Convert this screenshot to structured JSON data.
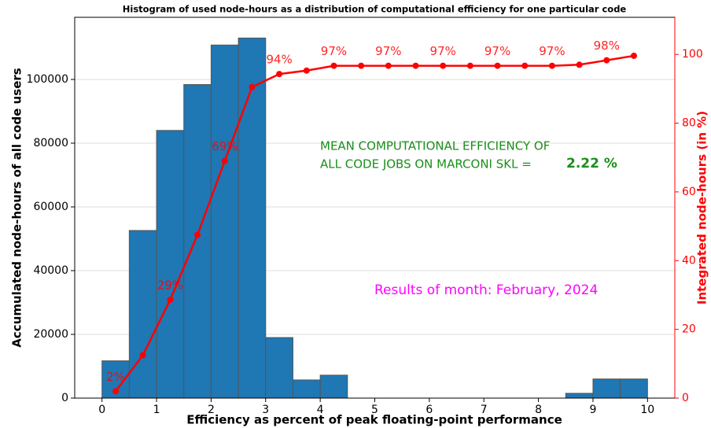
{
  "chart_data": {
    "type": "histogram",
    "title": "Histogram of used node-hours as a distribution of computational efficiency for one particular code",
    "xlabel": "Efficiency as percent of peak floating-point performance",
    "ylabel": "Accumulated node-hours of all code users",
    "y2label": "Integrated node-hours (in %)",
    "bins": [
      0,
      0.5,
      1,
      1.5,
      2,
      2.5,
      3,
      3.5,
      4,
      4.5,
      5,
      5.5,
      6,
      6.5,
      7,
      7.5,
      8,
      8.5,
      9,
      9.5,
      10
    ],
    "values": [
      11700,
      52600,
      84000,
      98400,
      110800,
      113000,
      19000,
      5700,
      7200,
      0,
      0,
      0,
      0,
      0,
      0,
      0,
      0,
      1500,
      6000,
      6000
    ],
    "color": "#1f77b4",
    "xlim": [
      -0.5,
      10.5
    ],
    "xticks": [
      0,
      1,
      2,
      3,
      4,
      5,
      6,
      7,
      8,
      9,
      10
    ],
    "ylim": [
      0,
      119500
    ],
    "yticks": [
      0,
      20000,
      40000,
      60000,
      80000,
      100000
    ],
    "y2lim": [
      0,
      110.8
    ],
    "y2ticks": [
      0,
      20,
      40,
      60,
      80,
      100
    ],
    "grid": true,
    "line": {
      "axis": "y2",
      "color": "#ff0000",
      "x": [
        0.25,
        0.75,
        1.25,
        1.75,
        2.25,
        2.75,
        3.25,
        3.75,
        4.25,
        4.75,
        5.25,
        5.75,
        6.25,
        6.75,
        7.25,
        7.75,
        8.25,
        8.75,
        9.25,
        9.75
      ],
      "values": [
        2,
        12.5,
        28.6,
        47.5,
        69,
        90.5,
        94.3,
        95.3,
        96.7,
        96.7,
        96.7,
        96.7,
        96.7,
        96.7,
        96.7,
        96.7,
        96.7,
        97,
        98.3,
        99.6
      ],
      "value_labels": [
        "2%",
        null,
        "29%",
        null,
        "69%",
        null,
        "94%",
        null,
        "97%",
        null,
        "97%",
        null,
        "97%",
        null,
        "97%",
        null,
        "97%",
        null,
        "98%",
        null
      ]
    },
    "annotations": [
      {
        "text": "MEAN COMPUTATIONAL EFFICIENCY OF",
        "color": "#1a8f1a"
      },
      {
        "text": "ALL CODE JOBS ON MARCONI SKL =",
        "color": "#1a8f1a"
      },
      {
        "text": "2.22 %",
        "color": "#1a8f1a"
      },
      {
        "text": "Results of month: February, 2024",
        "color": "#ff00ff"
      }
    ]
  }
}
